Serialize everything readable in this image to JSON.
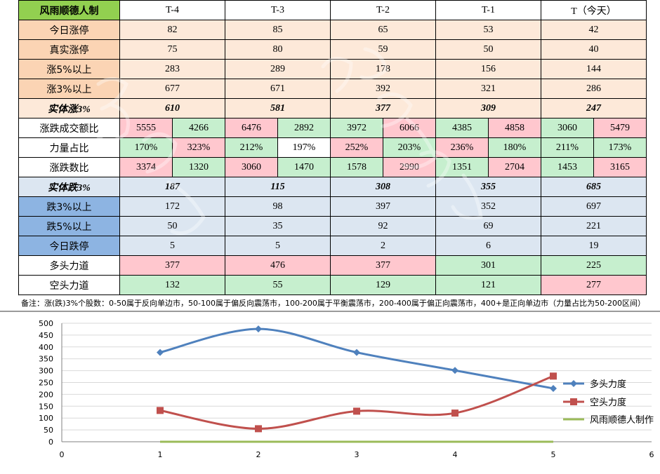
{
  "table": {
    "header": [
      "风雨顺德人制",
      "T-4",
      "T-3",
      "T-2",
      "T-1",
      "T（今天）"
    ],
    "rows": [
      {
        "label": "今日涨停",
        "values": [
          "82",
          "85",
          "65",
          "53",
          "42"
        ]
      },
      {
        "label": "真实涨停",
        "values": [
          "75",
          "80",
          "59",
          "50",
          "40"
        ]
      },
      {
        "label": "涨5%以上",
        "values": [
          "283",
          "289",
          "178",
          "156",
          "144"
        ]
      },
      {
        "label": "涨3%以上",
        "values": [
          "677",
          "671",
          "392",
          "321",
          "286"
        ]
      },
      {
        "label": "实体涨3%",
        "values": [
          "610",
          "581",
          "377",
          "309",
          "247"
        ]
      },
      {
        "label": "涨跌成交额比",
        "pairs": [
          [
            "5555",
            "4266"
          ],
          [
            "6476",
            "2892"
          ],
          [
            "3972",
            "6066"
          ],
          [
            "4385",
            "4858"
          ],
          [
            "3060",
            "5479"
          ]
        ]
      },
      {
        "label": "力量占比",
        "pairs": [
          [
            "170%",
            "323%"
          ],
          [
            "212%",
            "197%"
          ],
          [
            "252%",
            "203%"
          ],
          [
            "236%",
            "180%"
          ],
          [
            "211%",
            "173%"
          ]
        ]
      },
      {
        "label": "涨跌数比",
        "pairs": [
          [
            "3374",
            "1320"
          ],
          [
            "3060",
            "1470"
          ],
          [
            "1578",
            "2990"
          ],
          [
            "1351",
            "2704"
          ],
          [
            "1453",
            "3165"
          ]
        ]
      },
      {
        "label": "实体跌3%",
        "values": [
          "187",
          "115",
          "308",
          "355",
          "685"
        ]
      },
      {
        "label": "跌3%以上",
        "values": [
          "172",
          "98",
          "397",
          "352",
          "697"
        ]
      },
      {
        "label": "跌5%以上",
        "values": [
          "50",
          "35",
          "92",
          "69",
          "221"
        ]
      },
      {
        "label": "今日跌停",
        "values": [
          "5",
          "5",
          "2",
          "6",
          "19"
        ]
      },
      {
        "label": "多头力道",
        "values": [
          "377",
          "476",
          "377",
          "301",
          "225"
        ]
      },
      {
        "label": "空头力道",
        "values": [
          "132",
          "55",
          "129",
          "121",
          "277"
        ]
      }
    ],
    "note": "备注：涨(跌)3%个股数：0-50属于反向单边市，50-100属于偏反向震荡市，100-200属于平衡震荡市，200-400属于偏正向震荡市，400+是正向单边市（力量占比为50-200区间）"
  },
  "colors": {
    "long": "#4f81bd",
    "short": "#c0504d",
    "maker": "#9bbb59",
    "gridline": "#d9d9d9"
  },
  "chart_data": {
    "type": "line",
    "x": [
      1,
      2,
      3,
      4,
      5
    ],
    "series": [
      {
        "name": "多头力度",
        "values": [
          377,
          476,
          377,
          301,
          225
        ]
      },
      {
        "name": "空头力度",
        "values": [
          132,
          55,
          129,
          121,
          277
        ]
      },
      {
        "name": "风雨顺德人制作",
        "values": [
          0,
          0,
          0,
          0,
          0
        ]
      }
    ],
    "xlim": [
      0,
      6
    ],
    "ylim": [
      0,
      500
    ],
    "xticks": [
      0,
      1,
      2,
      3,
      4,
      5,
      6
    ],
    "yticks": [
      0,
      50,
      100,
      150,
      200,
      250,
      300,
      350,
      400,
      450,
      500
    ],
    "grid": true,
    "legend": "right",
    "smooth": true
  }
}
